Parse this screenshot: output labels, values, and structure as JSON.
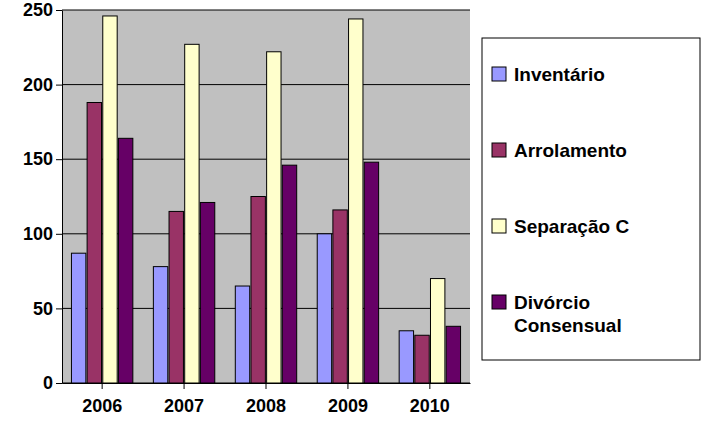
{
  "chart_data": {
    "type": "bar",
    "categories": [
      "2006",
      "2007",
      "2008",
      "2009",
      "2010"
    ],
    "series": [
      {
        "name": "Inventário",
        "color": "#9999ff",
        "values": [
          87,
          78,
          65,
          100,
          35
        ]
      },
      {
        "name": "Arrolamento",
        "color": "#993366",
        "values": [
          188,
          115,
          125,
          116,
          32
        ]
      },
      {
        "name": "Separação C",
        "color": "#ffffcc",
        "values": [
          246,
          227,
          222,
          244,
          70
        ]
      },
      {
        "name": "Divórcio Consensual",
        "color": "#660066",
        "values": [
          164,
          121,
          146,
          148,
          38
        ]
      }
    ],
    "ylim": [
      0,
      250
    ],
    "yticks": [
      0,
      50,
      100,
      150,
      200,
      250
    ],
    "grid": true,
    "legend": "right"
  }
}
